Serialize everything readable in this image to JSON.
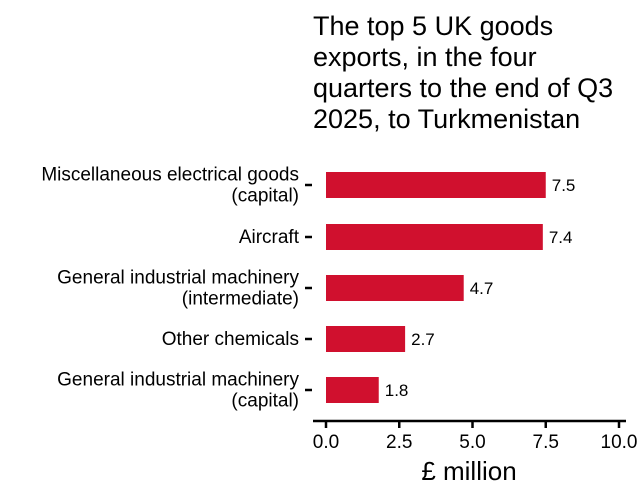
{
  "chart_data": {
    "type": "bar",
    "orientation": "horizontal",
    "title_lines": [
      "The top 5 UK goods",
      "exports, in the four",
      "quarters to the end of Q3",
      "2025, to Turkmenistan"
    ],
    "categories": [
      [
        "Miscellaneous electrical goods",
        "(capital)"
      ],
      [
        "Aircraft"
      ],
      [
        "General industrial machinery",
        "(intermediate)"
      ],
      [
        "Other chemicals"
      ],
      [
        "General industrial machinery",
        "(capital)"
      ]
    ],
    "values": [
      7.5,
      7.4,
      4.7,
      2.7,
      1.8
    ],
    "data_labels": [
      "7.5",
      "7.4",
      "4.7",
      "2.7",
      "1.8"
    ],
    "xlabel": "£ million",
    "xlim": [
      0,
      10
    ],
    "xticks": [
      0,
      2.5,
      5,
      7.5,
      10
    ],
    "xtick_labels": [
      "0.0",
      "2.5",
      "5.0",
      "7.5",
      "10.0"
    ],
    "bar_color": "#d0102e",
    "grid": false,
    "legend": "none"
  }
}
